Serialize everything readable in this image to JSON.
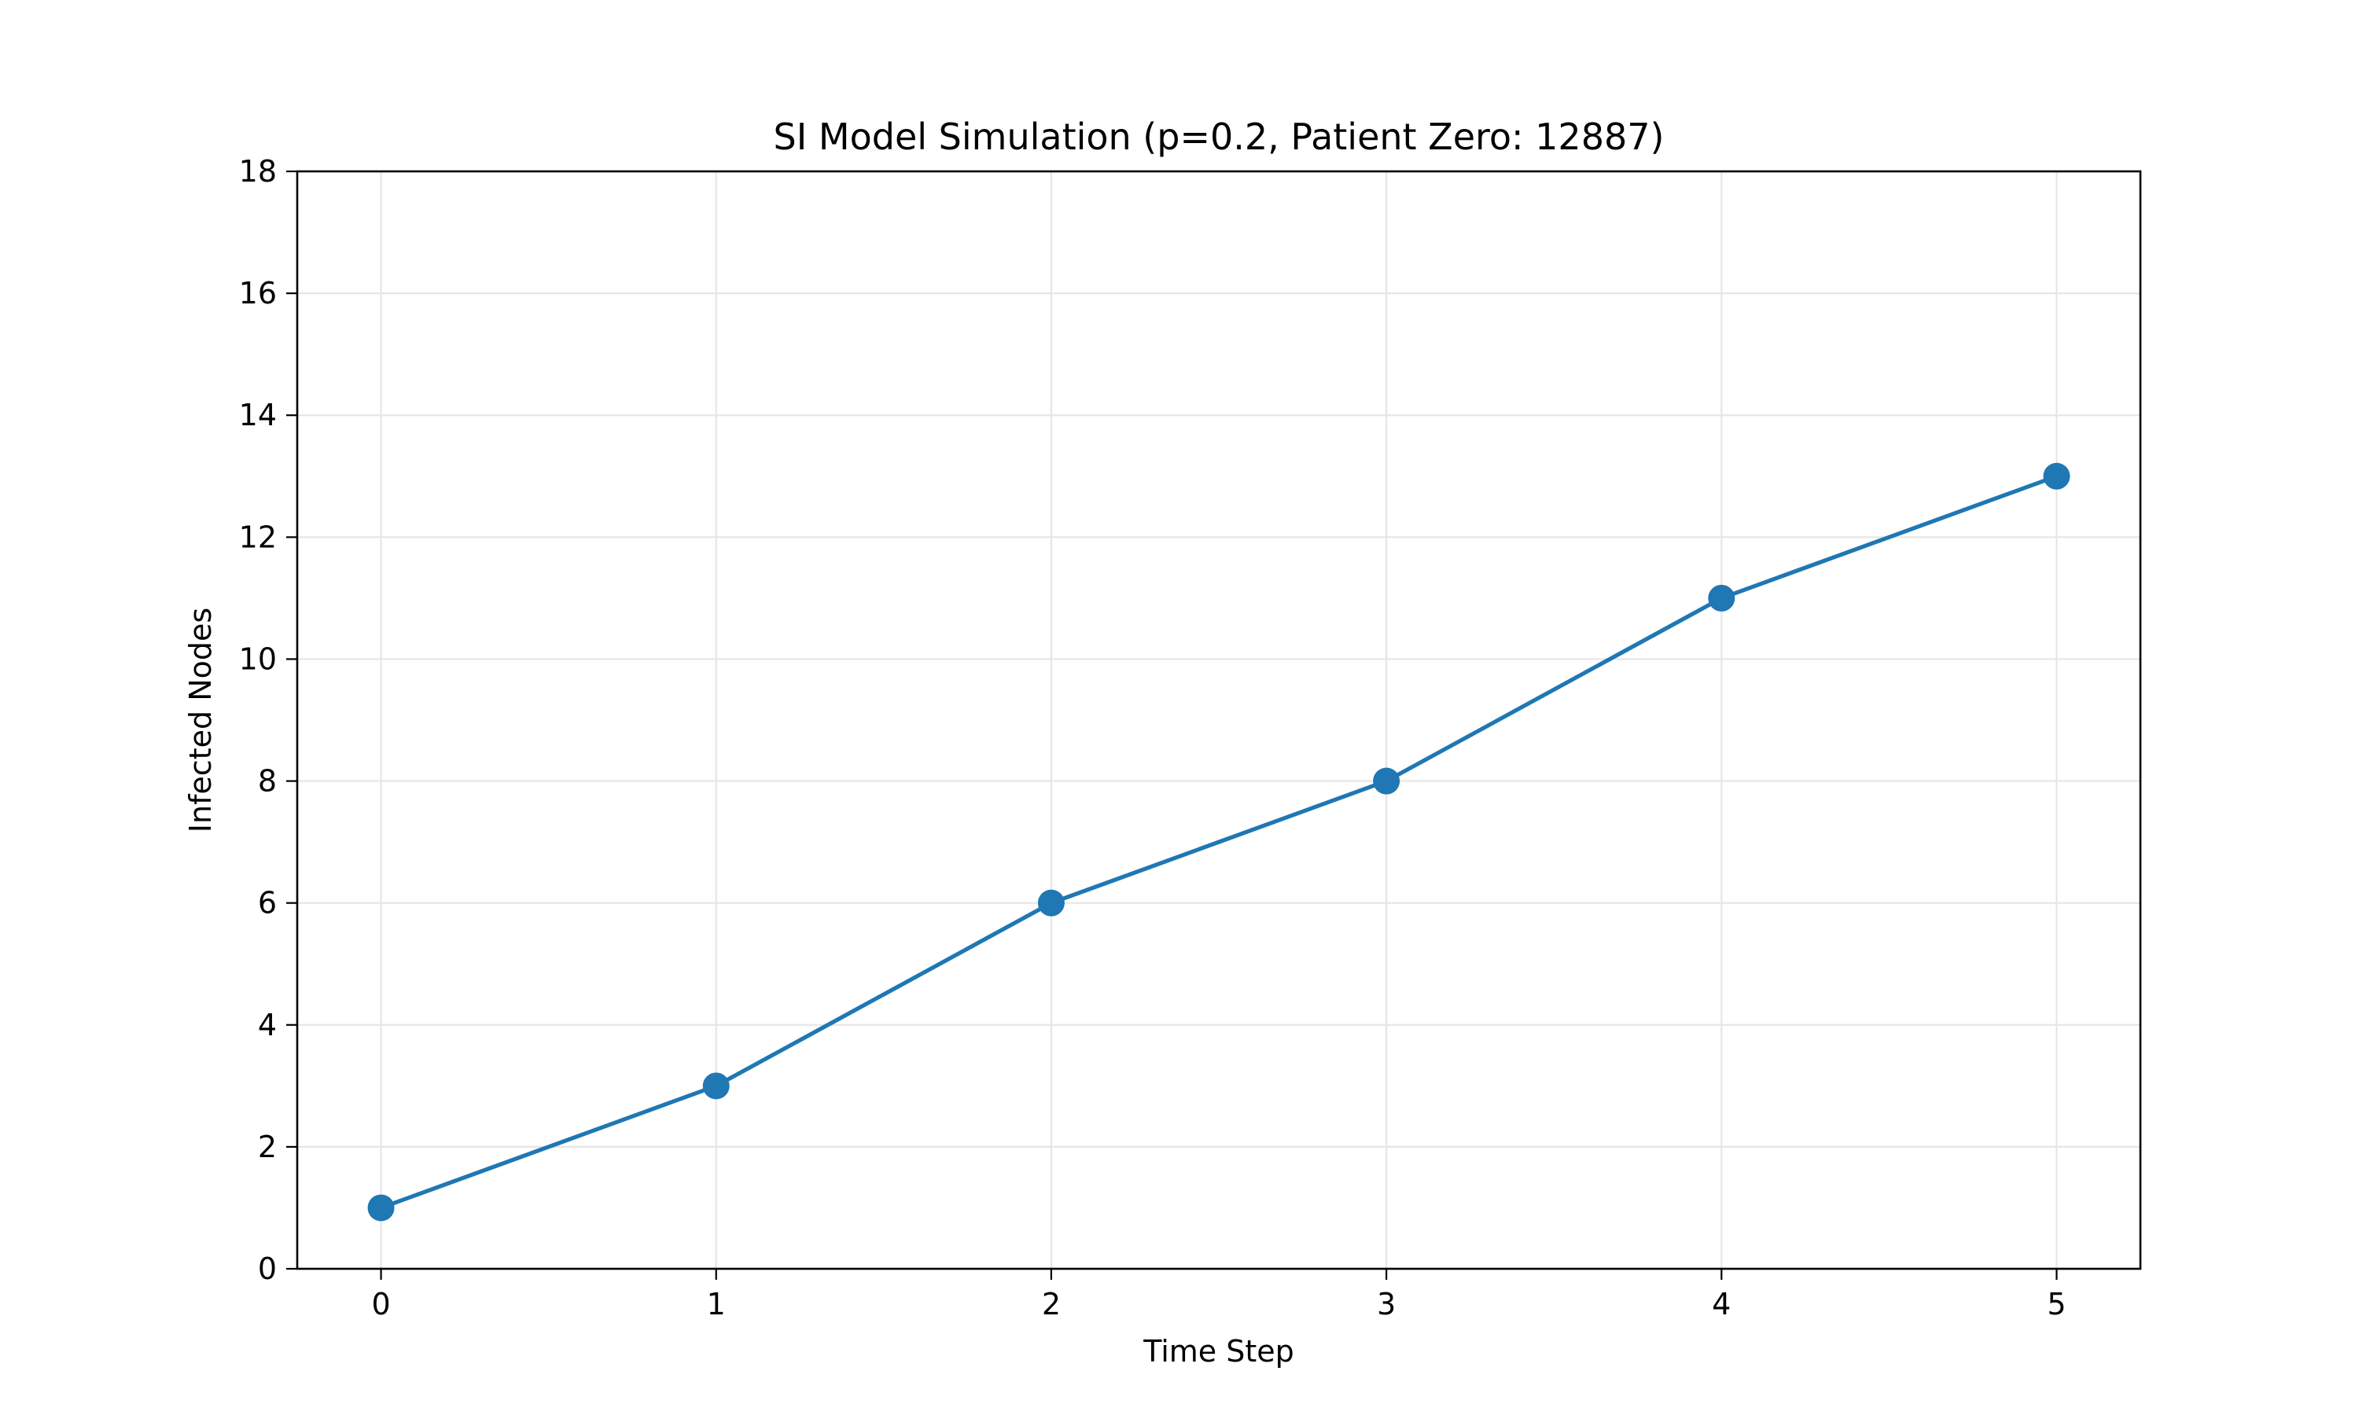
{
  "chart_data": {
    "type": "line",
    "title": "SI Model Simulation (p=0.2, Patient Zero: 12887)",
    "xlabel": "Time Step",
    "ylabel": "Infected Nodes",
    "xlim": [
      -0.25,
      5.25
    ],
    "ylim": [
      0,
      18
    ],
    "x_ticks": [
      0,
      1,
      2,
      3,
      4,
      5
    ],
    "y_ticks": [
      0,
      2,
      4,
      6,
      8,
      10,
      12,
      14,
      16,
      18
    ],
    "grid": true,
    "legend": "none",
    "series": [
      {
        "x": [
          0,
          1,
          2,
          3,
          4,
          5
        ],
        "values": [
          1,
          3,
          6,
          8,
          11,
          13
        ],
        "color": "#1f77b4",
        "marker": "circle"
      }
    ]
  }
}
